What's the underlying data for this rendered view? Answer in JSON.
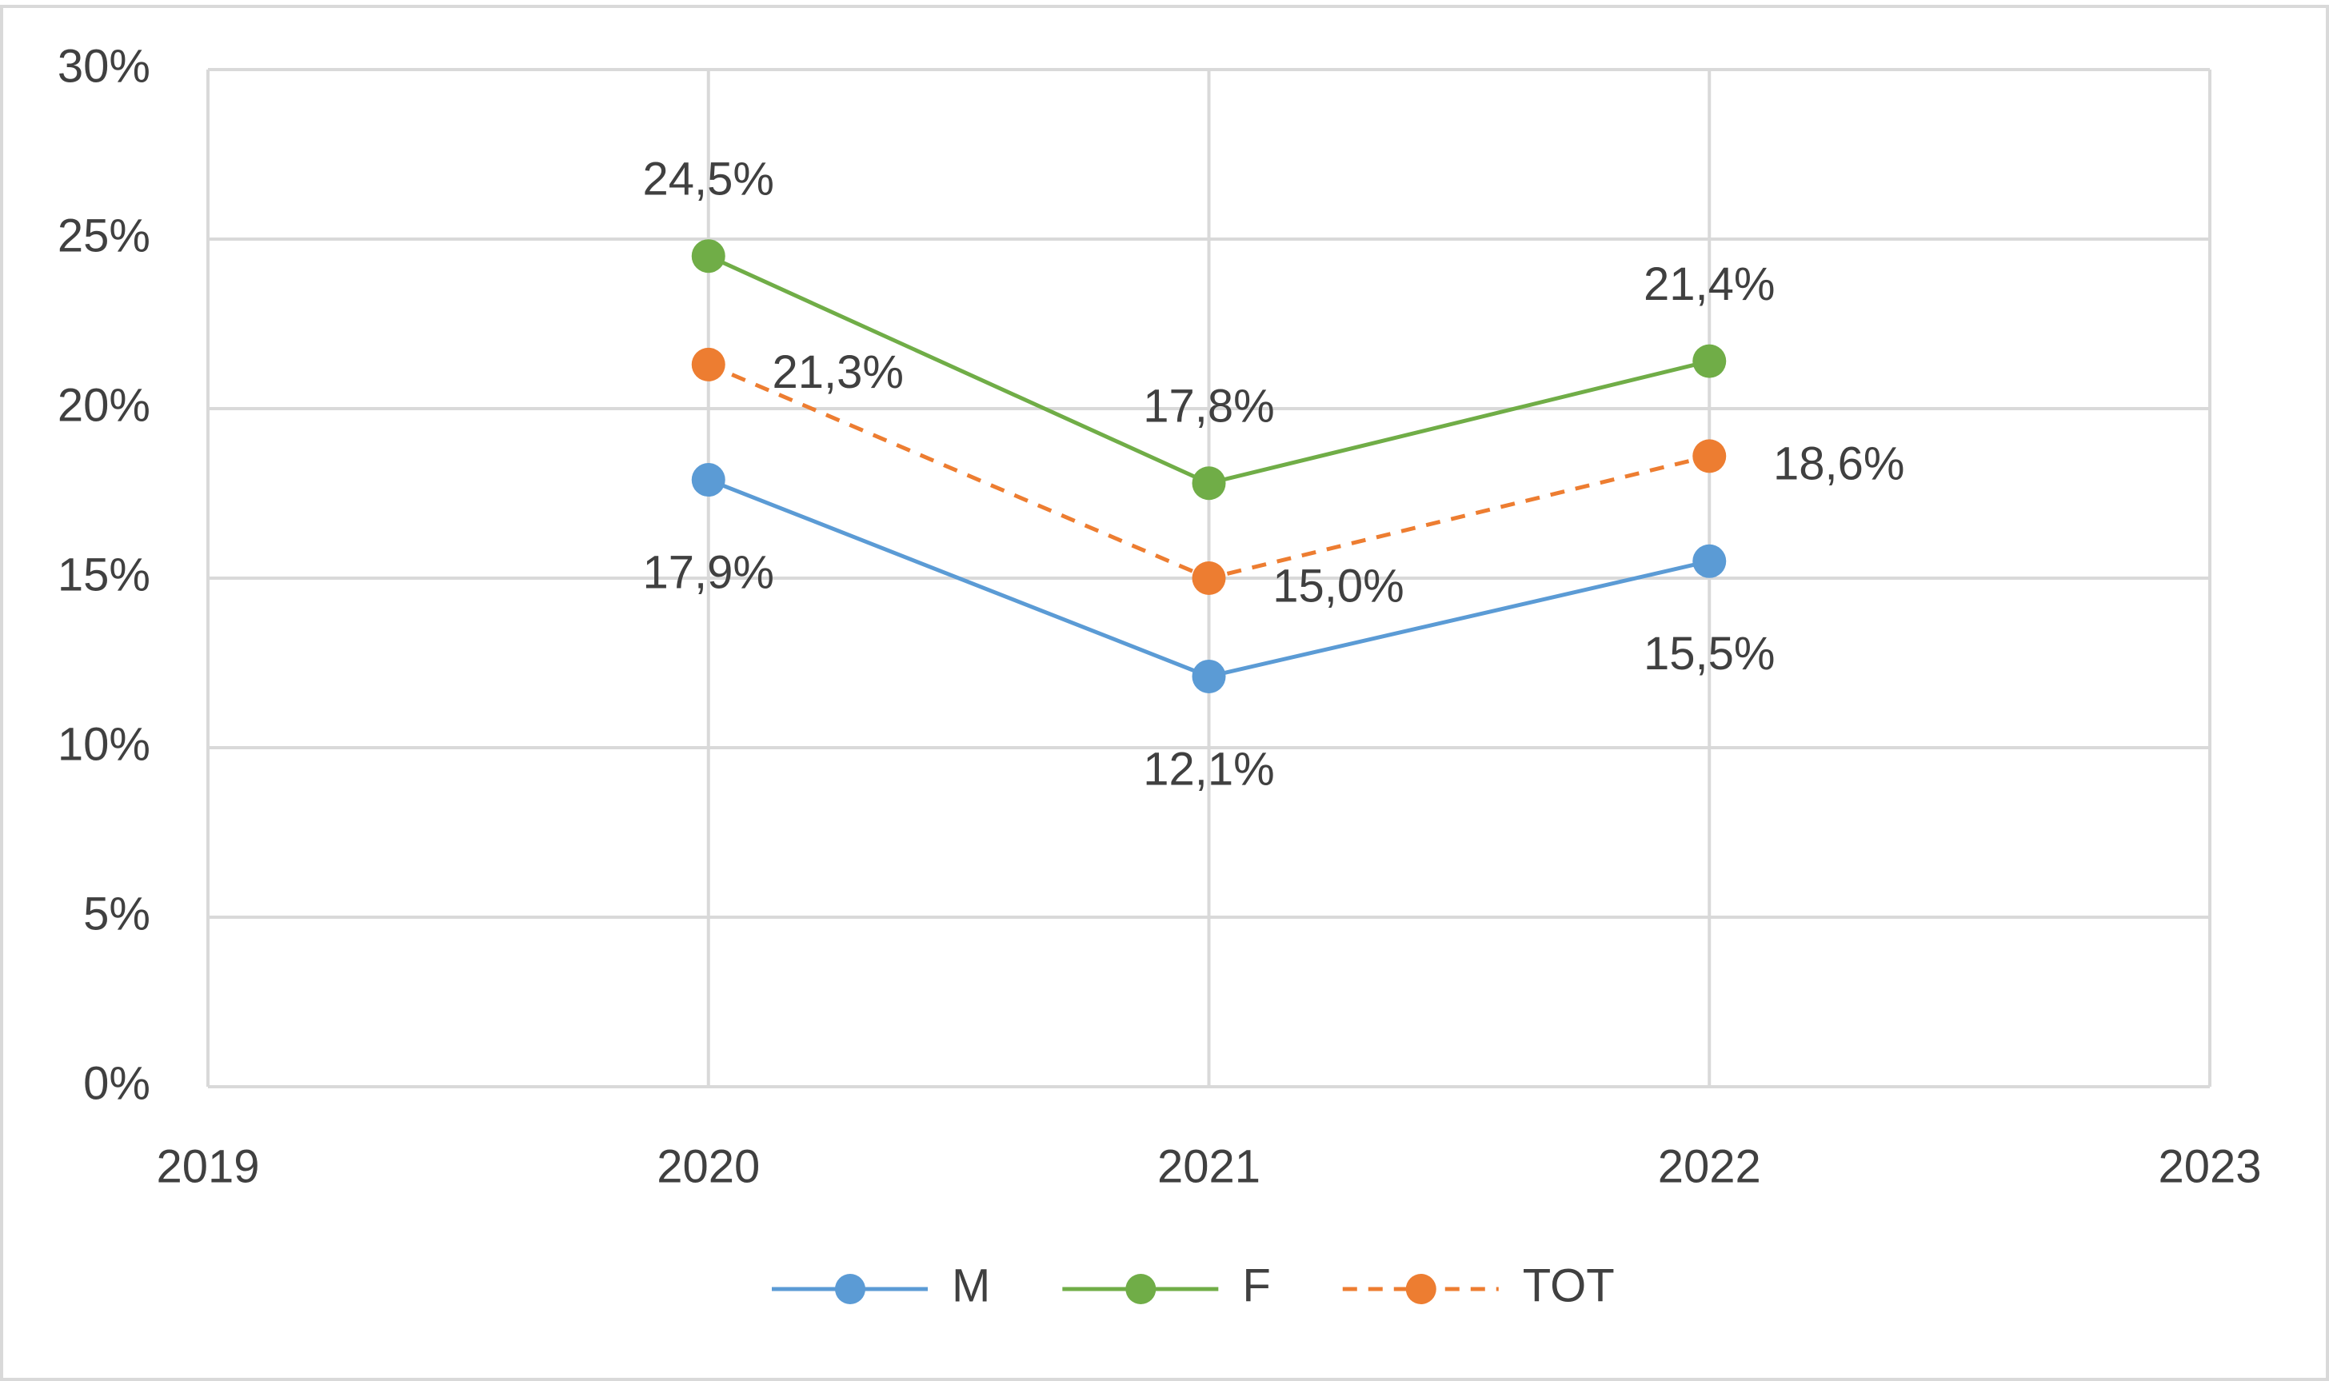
{
  "chart_data": {
    "type": "line",
    "x": [
      2020,
      2021,
      2022
    ],
    "series": [
      {
        "name": "M",
        "color": "#5b9bd5",
        "values": [
          17.9,
          12.1,
          15.5
        ],
        "value_labels": [
          "17,9%",
          "12,1%",
          "15,5%"
        ],
        "line_style": "solid"
      },
      {
        "name": "F",
        "color": "#70ad47",
        "values": [
          24.5,
          17.8,
          21.4
        ],
        "value_labels": [
          "24,5%",
          "17,8%",
          "21,4%"
        ],
        "line_style": "solid"
      },
      {
        "name": "TOT",
        "color": "#ed7d31",
        "values": [
          21.3,
          15.0,
          18.6
        ],
        "value_labels": [
          "21,3%",
          "15,0%",
          "18,6%"
        ],
        "line_style": "dashed"
      }
    ],
    "xlim": [
      2019,
      2023
    ],
    "xticks": [
      2019,
      2020,
      2021,
      2022,
      2023
    ],
    "ylim": [
      0,
      30
    ],
    "yticks": [
      {
        "value": 0,
        "label": "0%"
      },
      {
        "value": 5,
        "label": "5%"
      },
      {
        "value": 10,
        "label": "10%"
      },
      {
        "value": 15,
        "label": "15%"
      },
      {
        "value": 20,
        "label": "20%"
      },
      {
        "value": 25,
        "label": "25%"
      },
      {
        "value": 30,
        "label": "30%"
      }
    ],
    "grid": true,
    "legend": "bottom"
  }
}
